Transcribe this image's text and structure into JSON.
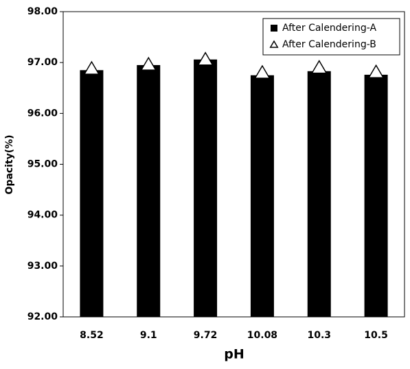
{
  "chart_data": {
    "type": "bar",
    "x_label": "pH",
    "y_label": "Opacity(%)",
    "categories": [
      "8.52",
      "9.1",
      "9.72",
      "10.08",
      "10.3",
      "10.5"
    ],
    "series": [
      {
        "name": "After Calendering-A",
        "mark": "bar",
        "color": "#000000",
        "values": [
          96.85,
          96.95,
          97.06,
          96.75,
          96.83,
          96.76
        ]
      },
      {
        "name": "After Calendering-B",
        "mark": "triangle",
        "color": "#ffffff",
        "values": [
          96.88,
          96.96,
          97.06,
          96.8,
          96.9,
          96.81
        ]
      }
    ],
    "ylim": [
      92,
      98
    ],
    "yticks": [
      {
        "value": 92,
        "label": "92.00"
      },
      {
        "value": 93,
        "label": "93.00"
      },
      {
        "value": 94,
        "label": "94.00"
      },
      {
        "value": 95,
        "label": "95.00"
      },
      {
        "value": 96,
        "label": "96.00"
      },
      {
        "value": 97,
        "label": "97.00"
      },
      {
        "value": 98,
        "label": "98.00"
      }
    ],
    "grid": false,
    "legend": "upper right"
  }
}
